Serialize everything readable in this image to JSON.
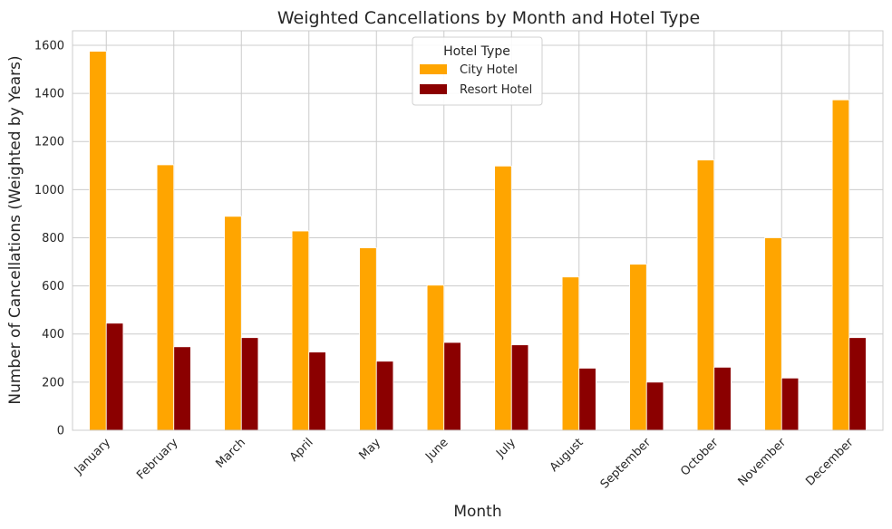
{
  "chart_data": {
    "type": "bar",
    "title": "Weighted Cancellations by Month and Hotel Type",
    "xlabel": "Month",
    "ylabel": "Number of Cancellations (Weighted by Years)",
    "ylim": [
      0,
      1660
    ],
    "yticks": [
      0,
      200,
      400,
      600,
      800,
      1000,
      1200,
      1400,
      1600
    ],
    "grid": true,
    "legend": {
      "title": "Hotel Type",
      "placement": "top-center"
    },
    "categories": [
      "January",
      "February",
      "March",
      "April",
      "May",
      "June",
      "July",
      "August",
      "September",
      "October",
      "November",
      "December"
    ],
    "series": [
      {
        "name": "City Hotel",
        "color": "#FFA500",
        "values": [
          1575,
          1103,
          889,
          828,
          758,
          603,
          1098,
          637,
          690,
          1123,
          800,
          1373
        ]
      },
      {
        "name": "Resort Hotel",
        "color": "#8B0000",
        "values": [
          445,
          347,
          385,
          325,
          287,
          365,
          355,
          258,
          200,
          262,
          217,
          385
        ]
      }
    ]
  }
}
